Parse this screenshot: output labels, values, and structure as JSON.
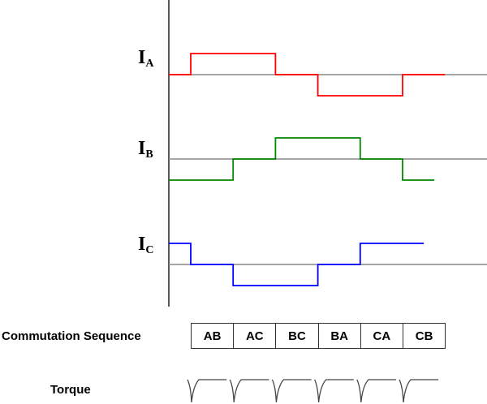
{
  "phases": [
    {
      "name": "I",
      "sub": "A",
      "color": "#ff0000",
      "levels": [
        0,
        1,
        1,
        0,
        -1,
        -1,
        0
      ],
      "end_fraction": 1.0
    },
    {
      "name": "I",
      "sub": "B",
      "color": "#008800",
      "levels": [
        -1,
        -1,
        0,
        1,
        1,
        0,
        -1
      ],
      "end_fraction": 0.75
    },
    {
      "name": "I",
      "sub": "C",
      "color": "#0000ff",
      "levels": [
        1,
        0,
        -1,
        -1,
        0,
        1,
        1
      ],
      "end_fraction": 0.5
    }
  ],
  "sequence_label": "Commutation Sequence",
  "sequence": [
    "AB",
    "AC",
    "BC",
    "BA",
    "CA",
    "CB"
  ],
  "torque_label": "Torque"
}
